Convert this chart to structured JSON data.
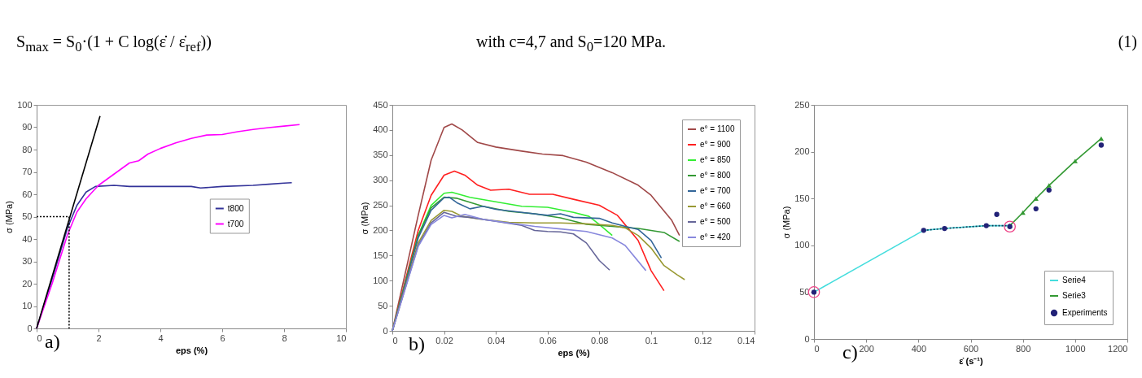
{
  "chart_data": [
    {
      "type": "other",
      "title": "S$_{max}$ = S$_{0}$·(1 + C log(ε̇ / ε̇$_{ref}$))",
      "annotations": [
        "with c=4,7 and S$_{0}$=120 MPa.",
        "(1)"
      ]
    },
    {
      "type": "line",
      "annotations": [
        "a)"
      ],
      "xlabel": "eps (%)",
      "ylabel": "σ (MPa)",
      "xlim": [
        0,
        10
      ],
      "xticks": [
        0,
        2,
        4,
        6,
        8,
        10
      ],
      "ylim": [
        0,
        100
      ],
      "yticks": [
        0,
        10,
        20,
        30,
        40,
        50,
        60,
        70,
        80,
        90,
        100
      ],
      "grid": false,
      "legend": "center",
      "series": [
        {
          "name": "t800",
          "color": "#333399",
          "x": [
            0,
            0.5,
            1,
            1.3,
            1.6,
            1.9,
            2.5,
            3,
            4,
            5,
            5.3,
            6,
            7,
            7.5,
            8,
            8.25
          ],
          "values": [
            0,
            22,
            45,
            55,
            61,
            63.5,
            64,
            63.5,
            63.5,
            63.5,
            62.8,
            63.5,
            64,
            64.5,
            65,
            65.2
          ]
        },
        {
          "name": "t700",
          "color": "#ff00ff",
          "x": [
            0,
            0.5,
            1,
            1.3,
            1.6,
            2,
            2.5,
            3,
            3.3,
            3.6,
            4,
            4.5,
            5,
            5.5,
            6,
            6.5,
            7,
            7.5,
            8,
            8.5
          ],
          "values": [
            0,
            20,
            42,
            52,
            58,
            64,
            69,
            74,
            75,
            78,
            80.5,
            83,
            85,
            86.5,
            86.7,
            88,
            89,
            89.8,
            90.5,
            91.2
          ]
        },
        {
          "color": "#000000",
          "x": [
            0,
            2.05
          ],
          "values": [
            0,
            95
          ]
        },
        {
          "color": "#000000",
          "line_style": "dotted",
          "x": [
            0,
            1.05,
            1.05
          ],
          "values": [
            50,
            50,
            0
          ]
        }
      ]
    },
    {
      "type": "line",
      "annotations": [
        "b)"
      ],
      "xlabel": "eps (%)",
      "ylabel": "σ (MPa)",
      "xlim": [
        0,
        0.14
      ],
      "xticks": [
        0,
        0.02,
        0.04,
        0.06,
        0.08,
        0.1,
        0.12,
        0.14
      ],
      "ylim": [
        0,
        450
      ],
      "yticks": [
        0,
        50,
        100,
        150,
        200,
        250,
        300,
        350,
        400,
        450
      ],
      "grid": false,
      "legend": "top right",
      "series": [
        {
          "name": "e° = 1100",
          "color": "#a04848",
          "x": [
            0,
            0.01,
            0.015,
            0.02,
            0.023,
            0.027,
            0.033,
            0.04,
            0.05,
            0.058,
            0.066,
            0.075,
            0.085,
            0.095,
            0.1,
            0.108,
            0.111
          ],
          "values": [
            0,
            230,
            340,
            405,
            412,
            400,
            375,
            366,
            358,
            352,
            349,
            336,
            315,
            290,
            270,
            220,
            190
          ]
        },
        {
          "name": "e° = 900",
          "color": "#ff2020",
          "x": [
            0,
            0.01,
            0.015,
            0.02,
            0.024,
            0.028,
            0.033,
            0.038,
            0.045,
            0.053,
            0.062,
            0.07,
            0.08,
            0.087,
            0.095,
            0.1,
            0.105
          ],
          "values": [
            0,
            200,
            270,
            310,
            318,
            310,
            290,
            280,
            282,
            272,
            272,
            262,
            250,
            230,
            180,
            120,
            80
          ]
        },
        {
          "name": "e° = 850",
          "color": "#33ee33",
          "x": [
            0,
            0.01,
            0.015,
            0.02,
            0.023,
            0.03,
            0.04,
            0.05,
            0.06,
            0.07,
            0.076,
            0.08,
            0.085
          ],
          "values": [
            0,
            190,
            250,
            274,
            276,
            266,
            257,
            248,
            246,
            236,
            228,
            212,
            190
          ]
        },
        {
          "name": "e° = 800",
          "color": "#339933",
          "x": [
            0,
            0.01,
            0.015,
            0.02,
            0.025,
            0.035,
            0.045,
            0.055,
            0.065,
            0.075,
            0.085,
            0.095,
            0.105,
            0.111
          ],
          "values": [
            0,
            190,
            245,
            266,
            264,
            248,
            238,
            233,
            225,
            212,
            208,
            204,
            196,
            178
          ]
        },
        {
          "name": "e° = 700",
          "color": "#336699",
          "x": [
            0,
            0.01,
            0.015,
            0.02,
            0.022,
            0.025,
            0.03,
            0.035,
            0.04,
            0.05,
            0.06,
            0.065,
            0.07,
            0.08,
            0.085,
            0.09,
            0.095,
            0.1,
            0.104
          ],
          "values": [
            0,
            185,
            240,
            265,
            266,
            255,
            243,
            248,
            242,
            236,
            230,
            233,
            226,
            224,
            215,
            208,
            202,
            180,
            145
          ]
        },
        {
          "name": "e° = 660",
          "color": "#999933",
          "x": [
            0,
            0.01,
            0.015,
            0.02,
            0.023,
            0.027,
            0.035,
            0.045,
            0.055,
            0.065,
            0.075,
            0.085,
            0.09,
            0.095,
            0.1,
            0.105,
            0.11,
            0.113
          ],
          "values": [
            0,
            175,
            220,
            240,
            238,
            228,
            222,
            216,
            215,
            215,
            213,
            210,
            205,
            190,
            165,
            130,
            112,
            102
          ]
        },
        {
          "name": "e° = 500",
          "color": "#666699",
          "x": [
            0,
            0.01,
            0.015,
            0.02,
            0.025,
            0.03,
            0.04,
            0.05,
            0.055,
            0.06,
            0.065,
            0.07,
            0.075,
            0.08,
            0.084
          ],
          "values": [
            0,
            170,
            215,
            236,
            228,
            226,
            218,
            210,
            200,
            198,
            197,
            193,
            175,
            140,
            121
          ]
        },
        {
          "name": "e° = 420",
          "color": "#8888dd",
          "x": [
            0,
            0.01,
            0.015,
            0.02,
            0.023,
            0.028,
            0.035,
            0.045,
            0.055,
            0.065,
            0.075,
            0.085,
            0.09,
            0.098
          ],
          "values": [
            0,
            168,
            212,
            230,
            225,
            232,
            222,
            215,
            208,
            203,
            198,
            185,
            170,
            120
          ]
        }
      ]
    },
    {
      "type": "line",
      "annotations": [
        "c)"
      ],
      "xlabel": "ε̇ (s⁻¹)",
      "ylabel": "σ (MPa)",
      "xlim": [
        0,
        1200
      ],
      "xticks": [
        0,
        200,
        400,
        600,
        800,
        1000,
        1200
      ],
      "ylim": [
        0,
        250
      ],
      "yticks": [
        0,
        50,
        100,
        150,
        200,
        250
      ],
      "grid": false,
      "legend": "bottom right",
      "series": [
        {
          "name": "Serie4",
          "color": "#44dddd",
          "x": [
            0,
            420,
            500,
            660,
            750
          ],
          "values": [
            50,
            116,
            118,
            121,
            121
          ]
        },
        {
          "color": "#113355",
          "line_style": "dotted",
          "x": [
            420,
            500,
            660,
            750
          ],
          "values": [
            116,
            118,
            121,
            121
          ]
        },
        {
          "name": "Serie3",
          "color": "#339933",
          "marker": "triangle",
          "x": [
            750,
            800,
            850,
            900,
            1000,
            1100
          ],
          "values": [
            121,
            135,
            150,
            164,
            190,
            214
          ]
        },
        {
          "type": "scatter",
          "marker": "circle",
          "color": "#ee4488",
          "x": [
            0,
            750
          ],
          "values": [
            50,
            120
          ]
        },
        {
          "name": "Experiments",
          "type": "scatter",
          "color": "#222277",
          "x": [
            0,
            420,
            500,
            660,
            700,
            750,
            850,
            900,
            1100
          ],
          "values": [
            50,
            116,
            118,
            121,
            133,
            120,
            139,
            159,
            207
          ]
        }
      ]
    }
  ]
}
